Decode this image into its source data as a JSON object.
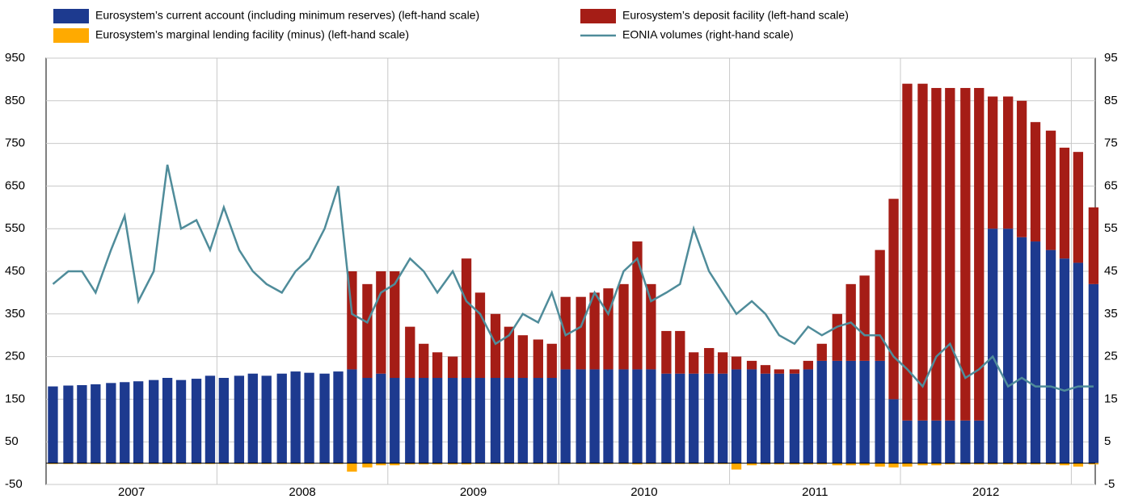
{
  "chart_data": {
    "type": "stacked-bar-line",
    "x": [
      2007.04,
      2007.13,
      2007.21,
      2007.29,
      2007.38,
      2007.46,
      2007.54,
      2007.63,
      2007.71,
      2007.79,
      2007.88,
      2007.96,
      2008.04,
      2008.13,
      2008.21,
      2008.29,
      2008.38,
      2008.46,
      2008.54,
      2008.63,
      2008.71,
      2008.79,
      2008.88,
      2008.96,
      2009.04,
      2009.13,
      2009.21,
      2009.29,
      2009.38,
      2009.46,
      2009.54,
      2009.63,
      2009.71,
      2009.79,
      2009.88,
      2009.96,
      2010.04,
      2010.13,
      2010.21,
      2010.29,
      2010.38,
      2010.46,
      2010.54,
      2010.63,
      2010.71,
      2010.79,
      2010.88,
      2010.96,
      2011.04,
      2011.13,
      2011.21,
      2011.29,
      2011.38,
      2011.46,
      2011.54,
      2011.63,
      2011.71,
      2011.79,
      2011.88,
      2011.96,
      2012.04,
      2012.13,
      2012.21,
      2012.29,
      2012.38,
      2012.46,
      2012.54,
      2012.63,
      2012.71,
      2012.79,
      2012.88,
      2012.96,
      2013.04,
      2013.13
    ],
    "xlim": [
      2007,
      2013.14
    ],
    "xticks": [
      {
        "value": 2007.5,
        "label": "2007"
      },
      {
        "value": 2008.5,
        "label": "2008"
      },
      {
        "value": 2009.5,
        "label": "2009"
      },
      {
        "value": 2010.5,
        "label": "2010"
      },
      {
        "value": 2011.5,
        "label": "2011"
      },
      {
        "value": 2012.5,
        "label": "2012"
      }
    ],
    "xgrid": [
      2008,
      2009,
      2010,
      2011,
      2012,
      2013
    ],
    "ylim": [
      -50,
      950
    ],
    "yticks": [
      -50,
      50,
      150,
      250,
      350,
      450,
      550,
      650,
      750,
      850,
      950
    ],
    "y2lim": [
      -5,
      95
    ],
    "y2ticks": [
      -5,
      5,
      15,
      25,
      35,
      45,
      55,
      65,
      75,
      85,
      95
    ],
    "grid": true,
    "series": [
      {
        "name": "Eurosystem’s current account (including minimum reserves) (left-hand scale)",
        "kind": "bar",
        "color": "#1d3a8f",
        "values": [
          180,
          182,
          183,
          185,
          188,
          190,
          192,
          195,
          200,
          195,
          198,
          205,
          200,
          205,
          210,
          205,
          210,
          215,
          212,
          210,
          215,
          220,
          200,
          210,
          200,
          200,
          200,
          200,
          200,
          200,
          200,
          200,
          200,
          200,
          200,
          200,
          220,
          220,
          220,
          220,
          220,
          220,
          220,
          210,
          210,
          210,
          210,
          210,
          220,
          220,
          210,
          210,
          210,
          220,
          240,
          240,
          240,
          240,
          240,
          150,
          100,
          100,
          100,
          100,
          100,
          100,
          550,
          550,
          530,
          520,
          500,
          480,
          470,
          420
        ]
      },
      {
        "name": "Eurosystem’s deposit facility (left-hand scale)",
        "kind": "bar",
        "color": "#a51d16",
        "values": [
          0,
          0,
          0,
          0,
          0,
          0,
          0,
          0,
          0,
          0,
          0,
          0,
          0,
          0,
          0,
          0,
          0,
          0,
          0,
          0,
          0,
          230,
          220,
          240,
          250,
          120,
          80,
          60,
          50,
          280,
          200,
          150,
          120,
          100,
          90,
          80,
          170,
          170,
          180,
          190,
          200,
          300,
          200,
          100,
          100,
          50,
          60,
          50,
          30,
          20,
          20,
          10,
          10,
          20,
          40,
          110,
          180,
          200,
          260,
          470,
          790,
          790,
          780,
          780,
          780,
          780,
          310,
          310,
          320,
          280,
          280,
          260,
          260,
          180
        ]
      },
      {
        "name": "Eurosystem’s marginal lending facility (minus) (left-hand scale)",
        "kind": "bar",
        "color": "#ffaa00",
        "values": [
          -2,
          -2,
          -2,
          -2,
          -2,
          -2,
          -2,
          -2,
          -2,
          -2,
          -2,
          -2,
          -2,
          -2,
          -2,
          -2,
          -2,
          -2,
          -2,
          -2,
          -2,
          -20,
          -10,
          -5,
          -5,
          -3,
          -3,
          -3,
          -3,
          -3,
          -2,
          -2,
          -2,
          -2,
          -2,
          -2,
          -2,
          -2,
          -2,
          -2,
          -2,
          -3,
          -2,
          -2,
          -2,
          -2,
          -2,
          -2,
          -15,
          -5,
          -3,
          -3,
          -3,
          -3,
          -3,
          -5,
          -5,
          -5,
          -8,
          -10,
          -8,
          -5,
          -5,
          -3,
          -3,
          -3,
          -3,
          -3,
          -3,
          -3,
          -3,
          -5,
          -8,
          -3
        ]
      },
      {
        "name": "EONIA volumes (right-hand scale)",
        "kind": "line",
        "axis": "y2",
        "color": "#4f8c9a",
        "values": [
          42,
          45,
          45,
          40,
          50,
          58,
          38,
          45,
          70,
          55,
          57,
          50,
          60,
          50,
          45,
          42,
          40,
          45,
          48,
          55,
          65,
          35,
          33,
          40,
          42,
          48,
          45,
          40,
          45,
          38,
          35,
          28,
          30,
          35,
          33,
          40,
          30,
          32,
          40,
          35,
          45,
          48,
          38,
          40,
          42,
          55,
          45,
          40,
          35,
          38,
          35,
          30,
          28,
          32,
          30,
          32,
          33,
          30,
          30,
          25,
          22,
          18,
          25,
          28,
          20,
          22,
          25,
          18,
          20,
          18,
          18,
          17,
          18,
          18
        ]
      }
    ]
  }
}
